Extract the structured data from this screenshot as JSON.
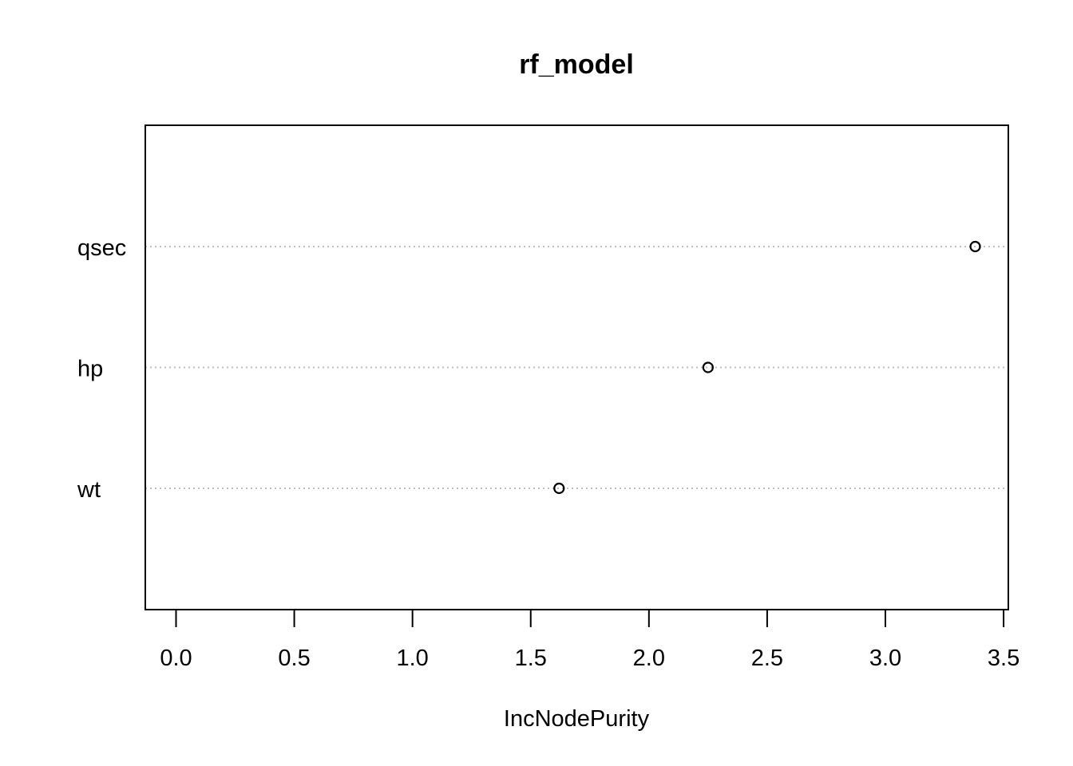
{
  "chart_data": {
    "type": "scatter",
    "title": "rf_model",
    "xlabel": "IncNodePurity",
    "ylabel": "",
    "categories": [
      "qsec",
      "hp",
      "wt"
    ],
    "values": [
      3.38,
      2.25,
      1.62
    ],
    "xlim": [
      -0.13,
      3.52
    ],
    "x_ticks": [
      0.0,
      0.5,
      1.0,
      1.5,
      2.0,
      2.5,
      3.0,
      3.5
    ],
    "x_tick_labels": [
      "0.0",
      "0.5",
      "1.0",
      "1.5",
      "2.0",
      "2.5",
      "3.0",
      "3.5"
    ],
    "grid": "horizontal dotted lines at each variable",
    "marker": "open circle",
    "colors": {
      "ink": "#000000",
      "grid": "#bebebe"
    }
  }
}
